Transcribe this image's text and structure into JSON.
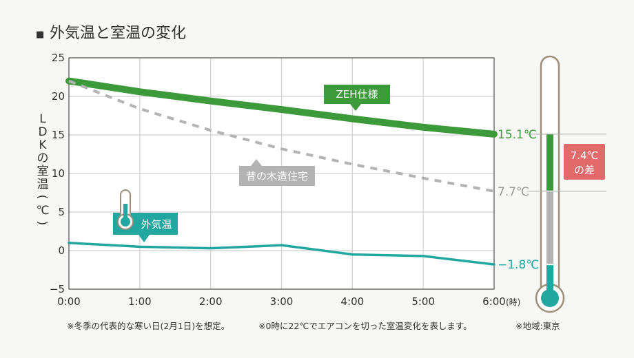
{
  "header": {
    "bullet": "■",
    "title": "外気温と室温の変化"
  },
  "chart_data": {
    "type": "line",
    "x": [
      "0:00",
      "1:00",
      "2:00",
      "3:00",
      "4:00",
      "5:00",
      "6:00"
    ],
    "x_unit": "(時)",
    "ylabel": [
      "L",
      "D",
      "K",
      "の",
      "室",
      "温",
      "(",
      "℃",
      ")"
    ],
    "ylim": [
      -5,
      25
    ],
    "yticks": [
      25,
      20,
      15,
      10,
      5,
      0,
      -5
    ],
    "ytick_labels": [
      "25",
      "20",
      "15",
      "10",
      "5",
      "0",
      "−5"
    ],
    "grid": true,
    "series": [
      {
        "name": "ZEH仕様",
        "values": [
          22.0,
          20.6,
          19.4,
          18.3,
          17.1,
          16.0,
          15.1
        ],
        "color": "#3c9a3a",
        "style": "solid-thick",
        "end_label": "15.1℃"
      },
      {
        "name": "昔の木造住宅",
        "values": [
          22.0,
          18.4,
          15.6,
          13.2,
          11.2,
          9.4,
          7.7
        ],
        "color": "#b3b3b3",
        "style": "dashed",
        "end_label": "7.7℃"
      },
      {
        "name": "外気温",
        "values": [
          1.0,
          0.5,
          0.3,
          0.7,
          -0.5,
          -0.7,
          -1.8
        ],
        "color": "#22a6a0",
        "style": "solid",
        "end_label": "−1.8℃"
      }
    ],
    "difference": {
      "label_line1": "7.4℃",
      "label_line2": "の差",
      "value": 7.4,
      "from": 7.7,
      "to": 15.1,
      "color": "#e26a6a"
    }
  },
  "footer": {
    "note1": "※冬季の代表的な寒い日(2月1日)を想定。",
    "note2": "※0時に22℃でエアコンを切った室温変化を表します。",
    "note3": "※地域:東京"
  }
}
